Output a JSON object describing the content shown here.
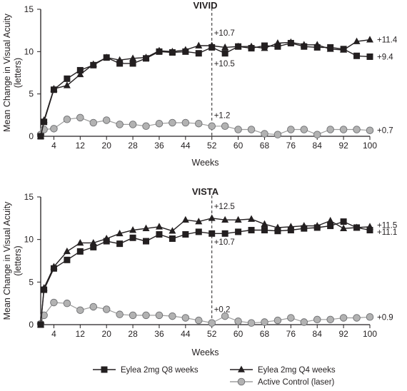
{
  "chart_data": [
    {
      "type": "line",
      "title": "VIVID",
      "xlabel": "Weeks",
      "ylabel": "Mean Change in Visual Acuity (letters)",
      "xlim": [
        0,
        100
      ],
      "ylim": [
        0,
        15
      ],
      "xticks": [
        4,
        12,
        20,
        28,
        36,
        44,
        52,
        60,
        68,
        76,
        84,
        92,
        100
      ],
      "yticks": [
        0,
        5,
        10,
        15
      ],
      "grid": false,
      "reference_line_x": 52,
      "series": [
        {
          "name": "Eylea 2mg Q8 weeks",
          "marker": "square",
          "x": [
            0,
            1,
            4,
            8,
            12,
            16,
            20,
            24,
            28,
            32,
            36,
            40,
            44,
            48,
            52,
            56,
            60,
            64,
            68,
            72,
            76,
            80,
            84,
            88,
            92,
            96,
            100
          ],
          "y": [
            0,
            1.7,
            5.5,
            6.8,
            7.8,
            8.4,
            9.3,
            8.6,
            8.6,
            9.2,
            10.0,
            9.9,
            10.0,
            9.8,
            10.5,
            9.8,
            10.6,
            10.4,
            10.7,
            10.6,
            11.0,
            10.6,
            10.5,
            10.5,
            10.3,
            9.5,
            9.4
          ]
        },
        {
          "name": "Eylea 2mg Q4 weeks",
          "marker": "triangle",
          "x": [
            0,
            1,
            4,
            8,
            12,
            16,
            20,
            24,
            28,
            32,
            36,
            40,
            44,
            48,
            52,
            56,
            60,
            64,
            68,
            72,
            76,
            80,
            84,
            88,
            92,
            96,
            100
          ],
          "y": [
            0,
            1.9,
            5.6,
            6.0,
            7.3,
            8.5,
            9.3,
            9.0,
            9.2,
            9.3,
            10.1,
            10.0,
            10.2,
            10.7,
            10.7,
            10.5,
            10.6,
            10.6,
            10.4,
            11.0,
            11.1,
            10.8,
            10.8,
            10.3,
            10.2,
            11.2,
            11.4
          ]
        },
        {
          "name": "Active Control (laser)",
          "marker": "circle",
          "x": [
            0,
            1,
            4,
            8,
            12,
            16,
            20,
            24,
            28,
            32,
            36,
            40,
            44,
            48,
            52,
            56,
            60,
            64,
            68,
            72,
            76,
            80,
            84,
            88,
            92,
            96,
            100
          ],
          "y": [
            0.2,
            0.8,
            0.9,
            2.0,
            2.2,
            1.6,
            1.9,
            1.4,
            1.4,
            1.2,
            1.5,
            1.6,
            1.6,
            1.5,
            1.2,
            1.2,
            0.8,
            0.8,
            0.3,
            0.2,
            0.8,
            0.8,
            0.2,
            0.8,
            0.8,
            0.8,
            0.7
          ]
        }
      ],
      "annotations": [
        {
          "text": "+10.7",
          "x": 52,
          "y": 12.2
        },
        {
          "text": "+10.5",
          "x": 52,
          "y": 8.6
        },
        {
          "text": "+1.2",
          "x": 52,
          "y": 2.5
        },
        {
          "text": "+11.4",
          "x": 100,
          "y": 11.4
        },
        {
          "text": "+9.4",
          "x": 100,
          "y": 9.4
        },
        {
          "text": "+0.7",
          "x": 100,
          "y": 0.7
        }
      ]
    },
    {
      "type": "line",
      "title": "VISTA",
      "xlabel": "Weeks",
      "ylabel": "Mean Change in Visual Acuity (letters)",
      "xlim": [
        0,
        100
      ],
      "ylim": [
        0,
        15
      ],
      "xticks": [
        4,
        12,
        20,
        28,
        36,
        44,
        52,
        60,
        68,
        76,
        84,
        92,
        100
      ],
      "yticks": [
        0,
        5,
        10,
        15
      ],
      "grid": false,
      "reference_line_x": 52,
      "series": [
        {
          "name": "Eylea 2mg Q8 weeks",
          "marker": "square",
          "x": [
            0,
            1,
            4,
            8,
            12,
            16,
            20,
            24,
            28,
            32,
            36,
            40,
            44,
            48,
            52,
            56,
            60,
            64,
            68,
            72,
            76,
            80,
            84,
            88,
            92,
            96,
            100
          ],
          "y": [
            0,
            4.1,
            6.6,
            7.6,
            8.6,
            9.1,
            9.8,
            9.5,
            10.2,
            9.8,
            10.6,
            10.1,
            10.6,
            10.9,
            10.7,
            10.7,
            10.9,
            11.1,
            11.1,
            11.0,
            11.1,
            11.3,
            11.4,
            11.6,
            12.1,
            11.4,
            11.1
          ]
        },
        {
          "name": "Eylea 2mg Q4 weeks",
          "marker": "triangle",
          "x": [
            0,
            1,
            4,
            8,
            12,
            16,
            20,
            24,
            28,
            32,
            36,
            40,
            44,
            48,
            52,
            56,
            60,
            64,
            68,
            72,
            76,
            80,
            84,
            88,
            92,
            96,
            100
          ],
          "y": [
            0,
            4.3,
            6.8,
            8.6,
            9.6,
            9.6,
            10.1,
            10.7,
            11.1,
            11.3,
            11.5,
            11.0,
            12.3,
            12.1,
            12.5,
            12.3,
            12.3,
            12.4,
            11.8,
            11.4,
            11.5,
            11.6,
            11.6,
            12.2,
            11.3,
            11.4,
            11.5
          ]
        },
        {
          "name": "Active Control (laser)",
          "marker": "circle",
          "x": [
            0,
            1,
            4,
            8,
            12,
            16,
            20,
            24,
            28,
            32,
            36,
            40,
            44,
            48,
            52,
            56,
            60,
            64,
            68,
            72,
            76,
            80,
            84,
            88,
            92,
            96,
            100
          ],
          "y": [
            0.1,
            1.1,
            2.6,
            2.5,
            1.7,
            2.1,
            1.8,
            1.2,
            1.1,
            1.1,
            1.1,
            1.0,
            0.8,
            0.5,
            0.2,
            1.0,
            0.4,
            0.2,
            0.3,
            0.5,
            0.8,
            0.3,
            0.6,
            0.6,
            0.8,
            0.8,
            0.9
          ]
        }
      ],
      "annotations": [
        {
          "text": "+12.5",
          "x": 52,
          "y": 13.9
        },
        {
          "text": "+10.7",
          "x": 52,
          "y": 9.7
        },
        {
          "text": "+0.2",
          "x": 52,
          "y": 1.8
        },
        {
          "text": "+11.5",
          "x": 100,
          "y": 11.7
        },
        {
          "text": "+11.1",
          "x": 100,
          "y": 10.9
        },
        {
          "text": "+0.9",
          "x": 100,
          "y": 0.9
        }
      ]
    }
  ],
  "legend": {
    "placement": "bottom",
    "items": [
      {
        "label": "Eylea 2mg Q8 weeks",
        "marker": "square"
      },
      {
        "label": "Eylea 2mg Q4 weeks",
        "marker": "triangle"
      },
      {
        "label": "Active Control (laser)",
        "marker": "circle"
      }
    ]
  },
  "colors": {
    "line": "#231f20",
    "square_marker": "#231f20",
    "triangle_marker": "#231f20",
    "circle_fill": "#b2b2b2",
    "circle_stroke": "#6d6e71",
    "control_line": "#9d9d9d"
  }
}
